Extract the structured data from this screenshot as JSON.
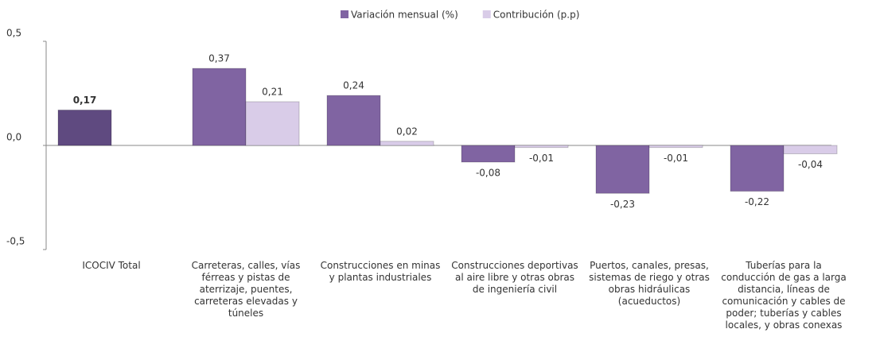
{
  "chart_data": {
    "type": "bar",
    "categories": [
      "ICOCIV Total",
      "Carreteras, calles, vías férreas y pistas de aterrizaje, puentes, carreteras elevadas y túneles",
      "Construcciones  en minas y plantas industriales",
      "Construcciones deportivas al aire libre y otras obras de ingeniería civil",
      "Puertos, canales, presas, sistemas de riego y otras obras hidráulicas (acueductos)",
      "Tuberías para la conducción de gas a larga distancia, líneas de comunicación y cables de poder; tuberías y cables locales, y obras conexas"
    ],
    "series": [
      {
        "name": "Variación mensual (%)",
        "color": "#8064a2",
        "colors": [
          "#5f4a80",
          "#8064a2",
          "#8064a2",
          "#8064a2",
          "#8064a2",
          "#8064a2"
        ],
        "values": [
          0.17,
          0.37,
          0.24,
          -0.08,
          -0.23,
          -0.22
        ],
        "value_labels": [
          "0,17",
          "0,37",
          "0,24",
          "-0,08",
          "-0,23",
          "-0,22"
        ]
      },
      {
        "name": "Contribución (p.p)",
        "color": "#d9cce8",
        "values": [
          null,
          0.21,
          0.02,
          -0.01,
          -0.01,
          -0.04
        ],
        "value_labels": [
          null,
          "0,21",
          "0,02",
          "-0,01",
          "-0,01",
          "-0,04"
        ]
      }
    ],
    "ylim": [
      -0.5,
      0.5
    ],
    "yticks": [
      {
        "value": -0.5,
        "label": "-0,5"
      },
      {
        "value": 0,
        "label": "0,0"
      },
      {
        "value": 0.5,
        "label": "0,5"
      }
    ],
    "legend": "top"
  }
}
